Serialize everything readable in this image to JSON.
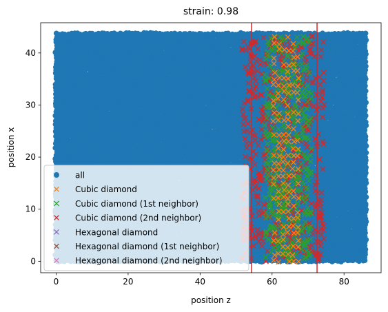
{
  "chart_data": {
    "type": "scatter",
    "title": "strain: 0.98",
    "xlabel": "position z",
    "ylabel": "position x",
    "xlim": [
      -4.3,
      90.3
    ],
    "ylim": [
      -2.2,
      45.8
    ],
    "xticks": [
      0,
      20,
      40,
      60,
      80
    ],
    "yticks": [
      0,
      10,
      20,
      30,
      40
    ],
    "grid": false,
    "legend": {
      "placement": "lower-left"
    },
    "vlines": {
      "x": [
        54.3,
        72.5
      ],
      "color": "#d62728"
    },
    "series": [
      {
        "name": "all",
        "marker": "circle",
        "color": "#1f77b4",
        "x_range": [
          0,
          86
        ],
        "y_range": [
          0,
          43.7
        ]
      },
      {
        "name": "Cubic diamond",
        "marker": "x",
        "color": "#ff7f0e",
        "x_range": [
          60.5,
          68.5
        ],
        "y_range": [
          0,
          43.5
        ]
      },
      {
        "name": "Cubic diamond (1st neighbor)",
        "marker": "x",
        "color": "#2ca02c",
        "x_range": [
          58,
          71
        ],
        "y_range": [
          0,
          43.5
        ]
      },
      {
        "name": "Cubic diamond (2nd neighbor)",
        "marker": "x",
        "color": "#d62728",
        "x_range": [
          51.5,
          74.5
        ],
        "y_range": [
          0,
          43.5
        ]
      },
      {
        "name": "Hexagonal diamond",
        "marker": "x",
        "color": "#9467bd"
      },
      {
        "name": "Hexagonal diamond (1st neighbor)",
        "marker": "x",
        "color": "#8c564b"
      },
      {
        "name": "Hexagonal diamond (2nd neighbor)",
        "marker": "x",
        "color": "#e377c2"
      }
    ]
  }
}
